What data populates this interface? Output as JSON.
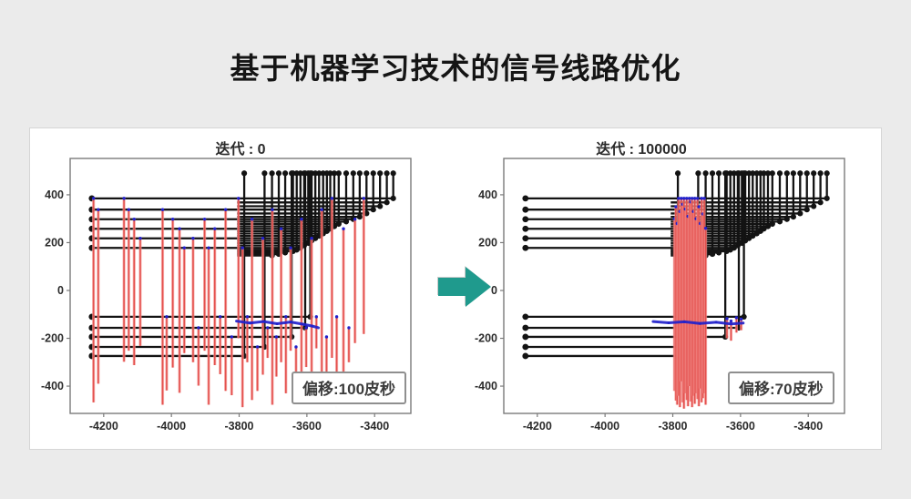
{
  "page": {
    "title": "基于机器学习技术的信号线路优化",
    "background": "#ebebeb",
    "panel_background": "#ffffff"
  },
  "arrow": {
    "direction": "right",
    "color": "#1f9a8d"
  },
  "chart_data": {
    "type": "line",
    "description": "信号线路(黑色网线)与时延偏移(红色stem+蓝色标记)对比图,优化前后",
    "x_range": [
      -4299,
      -3293
    ],
    "y_range": [
      -514,
      552
    ],
    "xtick_values": [
      -4200,
      -4000,
      -3800,
      -3600,
      -3400
    ],
    "ytick_values": [
      400,
      200,
      0,
      -200,
      -400
    ],
    "xtick_labels": [
      "-4200",
      "-4000",
      "-3800",
      "-3600",
      "-3400"
    ],
    "ytick_labels": [
      "400",
      "200",
      "0",
      "-200",
      "-400"
    ],
    "top_pin_y": 490,
    "colors": {
      "net": "#131313",
      "stem": "#e4504d",
      "stem_light": "#f59a97",
      "marker": "#2121cc",
      "axis": "#7a7a7a",
      "tick_text": "#2b2b2b"
    },
    "nets_format": "[y_level, x_right_corner, x_left_start, left_dot(1/0)]",
    "nets": [
      [
        385,
        -3345,
        -4235,
        1
      ],
      [
        368,
        -3364,
        -3806,
        0
      ],
      [
        352,
        -3384,
        -3806,
        0
      ],
      [
        338,
        -3404,
        -4235,
        1
      ],
      [
        322,
        -3424,
        -3806,
        0
      ],
      [
        308,
        -3444,
        -3806,
        0
      ],
      [
        298,
        -3463,
        -4235,
        1
      ],
      [
        288,
        -3484,
        -3806,
        0
      ],
      [
        278,
        -3506,
        -3806,
        0
      ],
      [
        268,
        -3519,
        -3806,
        0
      ],
      [
        258,
        -3531,
        -4235,
        1
      ],
      [
        248,
        -3541,
        -3806,
        0
      ],
      [
        238,
        -3552,
        -3806,
        0
      ],
      [
        228,
        -3564,
        -3806,
        0
      ],
      [
        218,
        -3575,
        -4235,
        1
      ],
      [
        208,
        -3586,
        -3806,
        0
      ],
      [
        198,
        -3596,
        -3806,
        0
      ],
      [
        188,
        -3608,
        -3806,
        0
      ],
      [
        178,
        -3619,
        -4235,
        1
      ],
      [
        170,
        -3630,
        -3806,
        0
      ],
      [
        164,
        -3641,
        -3806,
        0
      ],
      [
        158,
        -3664,
        -3806,
        0
      ],
      [
        152,
        -3683,
        -3806,
        0
      ],
      [
        146,
        -3703,
        -3806,
        0
      ],
      [
        -110,
        -3590,
        -4235,
        1
      ],
      [
        -156,
        -3605,
        -4235,
        1
      ],
      [
        -194,
        -3645,
        -4235,
        1
      ],
      [
        -236,
        -3725,
        -4235,
        1
      ],
      [
        -274,
        -3785,
        -4235,
        1
      ]
    ],
    "stems_format": "[x, y_top, y_bottom]",
    "charts": [
      {
        "title": "迭代 : 0",
        "annotation": "偏移:100皮秒",
        "stems": [
          [
            -4230,
            385,
            -468
          ],
          [
            -4216,
            338,
            -390
          ],
          [
            -4140,
            385,
            -298
          ],
          [
            -4126,
            338,
            -252
          ],
          [
            -4110,
            298,
            -312
          ],
          [
            -4092,
            218,
            -232
          ],
          [
            -4026,
            338,
            -478
          ],
          [
            -4014,
            -110,
            -418
          ],
          [
            -3996,
            298,
            -322
          ],
          [
            -3976,
            258,
            -428
          ],
          [
            -3962,
            178,
            -262
          ],
          [
            -3936,
            218,
            -300
          ],
          [
            -3920,
            -156,
            -398
          ],
          [
            -3902,
            298,
            -252
          ],
          [
            -3890,
            178,
            -478
          ],
          [
            -3872,
            258,
            -312
          ],
          [
            -3856,
            -110,
            -350
          ],
          [
            -3840,
            338,
            -420
          ],
          [
            -3822,
            -194,
            -438
          ],
          [
            -3802,
            385,
            -200
          ],
          [
            -3790,
            178,
            -488
          ],
          [
            -3776,
            -110,
            -300
          ],
          [
            -3762,
            298,
            -458
          ],
          [
            -3746,
            -236,
            -420
          ],
          [
            -3730,
            218,
            -352
          ],
          [
            -3716,
            -156,
            -282
          ],
          [
            -3702,
            338,
            -478
          ],
          [
            -3690,
            -194,
            -360
          ],
          [
            -3676,
            258,
            -300
          ],
          [
            -3662,
            -110,
            -430
          ],
          [
            -3648,
            178,
            -252
          ],
          [
            -3632,
            -236,
            -468
          ],
          [
            -3616,
            298,
            -380
          ],
          [
            -3602,
            -156,
            -320
          ],
          [
            -3586,
            218,
            -458
          ],
          [
            -3572,
            -110,
            -242
          ],
          [
            -3556,
            338,
            -400
          ],
          [
            -3542,
            -194,
            -340
          ],
          [
            -3526,
            385,
            -282
          ],
          [
            -3512,
            -110,
            -378
          ],
          [
            -3492,
            258,
            -438
          ],
          [
            -3476,
            -156,
            -300
          ],
          [
            -3458,
            298,
            -220
          ],
          [
            -3432,
            385,
            -182
          ]
        ],
        "blue_band": [
          [
            -3808,
            -128,
            -3768,
            -136
          ],
          [
            -3768,
            -136,
            -3728,
            -130
          ],
          [
            -3728,
            -130,
            -3688,
            -139
          ],
          [
            -3688,
            -139,
            -3648,
            -132
          ],
          [
            -3648,
            -132,
            -3612,
            -141
          ],
          [
            -3612,
            -141,
            -3584,
            -149
          ],
          [
            -3584,
            -149,
            -3566,
            -156
          ]
        ]
      },
      {
        "title": "迭代 : 100000",
        "annotation": "偏移:70皮秒",
        "stems": [
          [
            -3795,
            300,
            -420
          ],
          [
            -3791,
            350,
            -460
          ],
          [
            -3787,
            280,
            -478
          ],
          [
            -3783,
            385,
            -440
          ],
          [
            -3779,
            330,
            -488
          ],
          [
            -3775,
            385,
            -380
          ],
          [
            -3771,
            360,
            -468
          ],
          [
            -3767,
            385,
            -494
          ],
          [
            -3763,
            340,
            -430
          ],
          [
            -3759,
            385,
            -458
          ],
          [
            -3755,
            310,
            -484
          ],
          [
            -3751,
            385,
            -400
          ],
          [
            -3747,
            370,
            -464
          ],
          [
            -3743,
            385,
            -488
          ],
          [
            -3739,
            330,
            -440
          ],
          [
            -3735,
            385,
            -474
          ],
          [
            -3731,
            300,
            -430
          ],
          [
            -3727,
            385,
            -454
          ],
          [
            -3723,
            350,
            -484
          ],
          [
            -3719,
            280,
            -410
          ],
          [
            -3715,
            385,
            -468
          ],
          [
            -3711,
            320,
            -450
          ],
          [
            -3707,
            385,
            -430
          ],
          [
            -3703,
            260,
            -478
          ],
          [
            -3640,
            -118,
            -200
          ],
          [
            -3628,
            -128,
            -210
          ],
          [
            -3612,
            -114,
            -176
          ],
          [
            -3598,
            -120,
            -166
          ]
        ],
        "blue_band": [
          [
            -3858,
            -130,
            -3812,
            -135
          ],
          [
            -3812,
            -135,
            -3766,
            -131
          ],
          [
            -3766,
            -131,
            -3720,
            -138
          ],
          [
            -3720,
            -138,
            -3672,
            -133
          ],
          [
            -3672,
            -133,
            -3628,
            -140
          ],
          [
            -3628,
            -140,
            -3592,
            -136
          ]
        ]
      }
    ]
  }
}
